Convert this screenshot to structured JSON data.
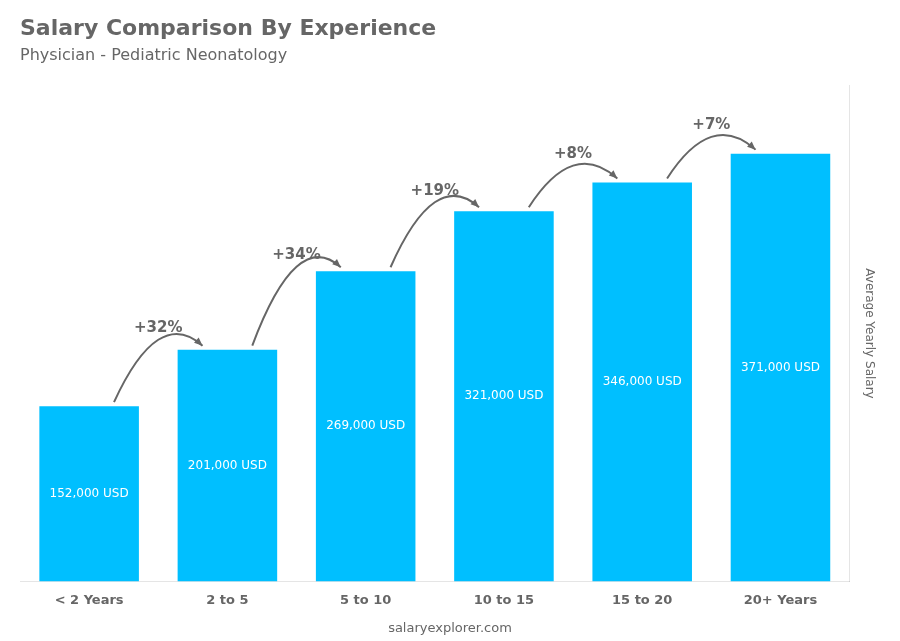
{
  "chart_data": {
    "type": "bar",
    "title": "Salary Comparison By Experience",
    "subtitle": "Physician - Pediatric Neonatology",
    "y_label": "Average Yearly Salary",
    "footer": "salaryexplorer.com",
    "categories": [
      "< 2 Years",
      "2 to 5",
      "5 to 10",
      "10 to 15",
      "15 to 20",
      "20+ Years"
    ],
    "values": [
      152000,
      201000,
      269000,
      321000,
      346000,
      371000
    ],
    "value_labels": [
      "152,000 USD",
      "201,000 USD",
      "269,000 USD",
      "321,000 USD",
      "346,000 USD",
      "371,000 USD"
    ],
    "annotations": [
      "+32%",
      "+34%",
      "+19%",
      "+8%",
      "+7%"
    ],
    "color": "#00BFFF",
    "ylim": [
      0,
      430000
    ],
    "grid": false,
    "data_labels": true,
    "tick_labels": "x"
  }
}
